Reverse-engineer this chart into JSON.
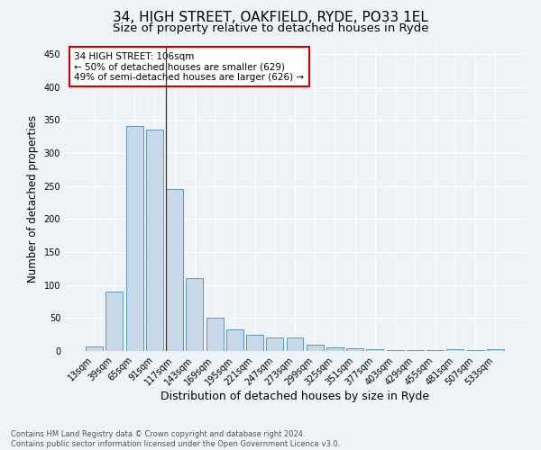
{
  "title1": "34, HIGH STREET, OAKFIELD, RYDE, PO33 1EL",
  "title2": "Size of property relative to detached houses in Ryde",
  "xlabel": "Distribution of detached houses by size in Ryde",
  "ylabel": "Number of detached properties",
  "footnote": "Contains HM Land Registry data © Crown copyright and database right 2024.\nContains public sector information licensed under the Open Government Licence v3.0.",
  "bar_labels": [
    "13sqm",
    "39sqm",
    "65sqm",
    "91sqm",
    "117sqm",
    "143sqm",
    "169sqm",
    "195sqm",
    "221sqm",
    "247sqm",
    "273sqm",
    "299sqm",
    "325sqm",
    "351sqm",
    "377sqm",
    "403sqm",
    "429sqm",
    "455sqm",
    "481sqm",
    "507sqm",
    "533sqm"
  ],
  "bar_values": [
    7,
    90,
    341,
    335,
    245,
    110,
    50,
    33,
    25,
    20,
    20,
    10,
    5,
    4,
    3,
    2,
    1,
    1,
    3,
    1,
    3
  ],
  "bar_color": "#c8d8e8",
  "bar_edge_color": "#5a9abf",
  "annotation_text": "34 HIGH STREET: 106sqm\n← 50% of detached houses are smaller (629)\n49% of semi-detached houses are larger (626) →",
  "annotation_box_color": "#ffffff",
  "annotation_border_color": "#cc0000",
  "vline_color": "#333333",
  "ylim": [
    0,
    460
  ],
  "yticks": [
    0,
    50,
    100,
    150,
    200,
    250,
    300,
    350,
    400,
    450
  ],
  "bg_color": "#eef3f8",
  "plot_bg_color": "#eef3f8",
  "grid_color": "#ffffff",
  "title1_fontsize": 11,
  "title2_fontsize": 9.5,
  "tick_fontsize": 7,
  "ylabel_fontsize": 8.5,
  "xlabel_fontsize": 9,
  "annotation_fontsize": 7.5,
  "footnote_fontsize": 6.0
}
